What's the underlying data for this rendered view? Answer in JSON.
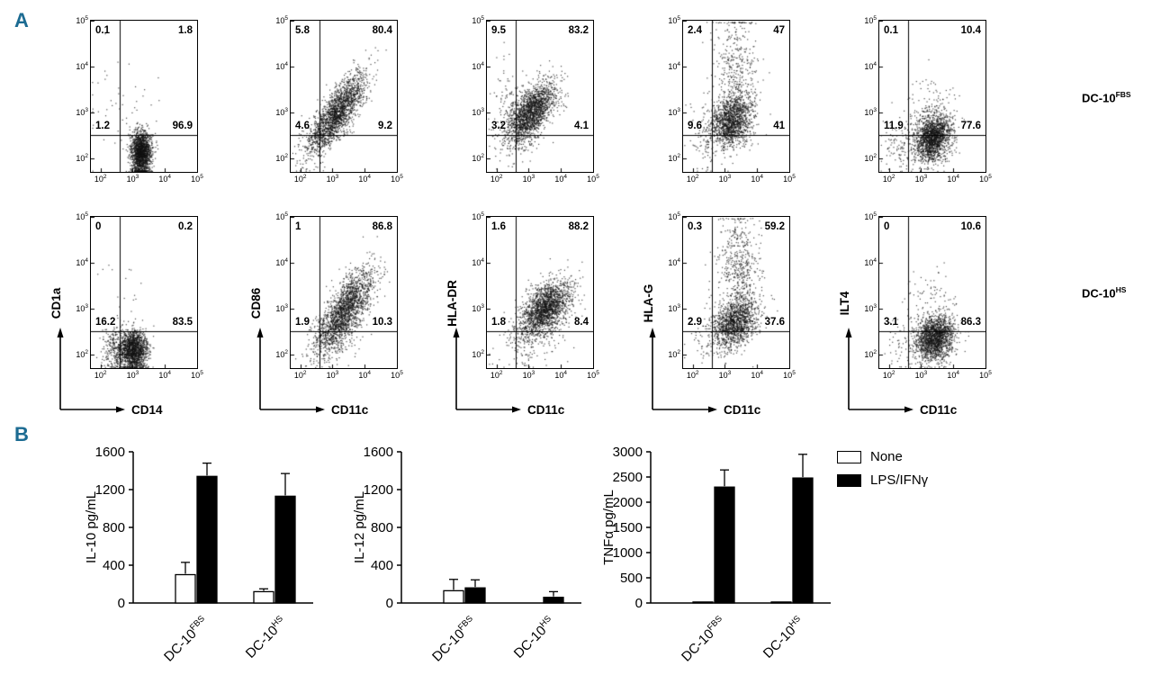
{
  "colors": {
    "panel_label": "#1c6b92",
    "dot": "#111111",
    "axis": "#000000"
  },
  "panel_a": {
    "label": "A",
    "tick_exponents": [
      2,
      3,
      4,
      5
    ],
    "row_labels": [
      {
        "text": "DC-10",
        "sup": "FBS"
      },
      {
        "text": "DC-10",
        "sup": "HS"
      }
    ],
    "columns": [
      {
        "y_label": "CD1a",
        "x_label": "CD14"
      },
      {
        "y_label": "CD86",
        "x_label": "CD11c"
      },
      {
        "y_label": "HLA-DR",
        "x_label": "CD11c"
      },
      {
        "y_label": "HLA-G",
        "x_label": "CD11c"
      },
      {
        "y_label": "ILT4",
        "x_label": "CD11c"
      }
    ]
  },
  "panel_b": {
    "label": "B",
    "legend": [
      {
        "label": "None",
        "fill": "#ffffff"
      },
      {
        "label": "LPS/IFNγ",
        "fill": "#000000"
      }
    ]
  },
  "chart_data": [
    {
      "type": "scatter",
      "row": 0,
      "col": 0,
      "row_label": "DC-10 FBS",
      "x_label": "CD14",
      "y_label": "CD1a",
      "x_range_exp": [
        1.7,
        5
      ],
      "y_range_exp": [
        1.7,
        5
      ],
      "quad_x": 2.6,
      "quad_y": 2.5,
      "quadrants": {
        "tl": "0.1",
        "tr": "1.8",
        "bl": "1.2",
        "br": "96.9"
      },
      "seed": 11,
      "clusters": [
        {
          "cx": 3.25,
          "cy": 2.12,
          "sx": 0.15,
          "sy": 0.24,
          "corr": 0,
          "n": 1700
        },
        {
          "cx": 2.35,
          "cy": 3.3,
          "sx": 0.45,
          "sy": 0.8,
          "corr": 0,
          "n": 30
        },
        {
          "cx": 3.2,
          "cy": 2.7,
          "sx": 0.4,
          "sy": 0.5,
          "corr": 0,
          "n": 40
        }
      ]
    },
    {
      "type": "scatter",
      "row": 0,
      "col": 1,
      "row_label": "DC-10 FBS",
      "x_label": "CD11c",
      "y_label": "CD86",
      "x_range_exp": [
        1.7,
        5
      ],
      "y_range_exp": [
        1.7,
        5
      ],
      "quad_x": 2.6,
      "quad_y": 2.5,
      "quadrants": {
        "tl": "5.8",
        "tr": "80.4",
        "bl": "4.6",
        "br": "9.2"
      },
      "seed": 12,
      "clusters": [
        {
          "cx": 3.15,
          "cy": 3.0,
          "sx": 0.42,
          "sy": 0.42,
          "corr": 0.78,
          "n": 1900
        },
        {
          "cx": 2.45,
          "cy": 2.35,
          "sx": 0.3,
          "sy": 0.3,
          "corr": 0.3,
          "n": 110
        }
      ]
    },
    {
      "type": "scatter",
      "row": 0,
      "col": 2,
      "row_label": "DC-10 FBS",
      "x_label": "CD11c",
      "y_label": "HLA-DR",
      "x_range_exp": [
        1.7,
        5
      ],
      "y_range_exp": [
        1.7,
        5
      ],
      "quad_x": 2.6,
      "quad_y": 2.5,
      "quadrants": {
        "tl": "9.5",
        "tr": "83.2",
        "bl": "3.2",
        "br": "4.1"
      },
      "seed": 13,
      "clusters": [
        {
          "cx": 3.05,
          "cy": 3.0,
          "sx": 0.4,
          "sy": 0.33,
          "corr": 0.6,
          "n": 1900
        },
        {
          "cx": 2.35,
          "cy": 3.2,
          "sx": 0.3,
          "sy": 0.45,
          "corr": 0,
          "n": 70
        },
        {
          "cx": 2.6,
          "cy": 2.3,
          "sx": 0.3,
          "sy": 0.25,
          "corr": 0,
          "n": 50
        }
      ]
    },
    {
      "type": "scatter",
      "row": 0,
      "col": 3,
      "row_label": "DC-10 FBS",
      "x_label": "CD11c",
      "y_label": "HLA-G",
      "x_range_exp": [
        1.7,
        5
      ],
      "y_range_exp": [
        1.7,
        5
      ],
      "quad_x": 2.6,
      "quad_y": 2.5,
      "quadrants": {
        "tl": "2.4",
        "tr": "47",
        "bl": "9.6",
        "br": "41"
      },
      "seed": 14,
      "clusters": [
        {
          "cx": 3.2,
          "cy": 2.8,
          "sx": 0.33,
          "sy": 0.28,
          "corr": 0.25,
          "n": 1400
        },
        {
          "cx": 3.35,
          "cy": 3.9,
          "sx": 0.33,
          "sy": 0.65,
          "corr": 0,
          "n": 420
        },
        {
          "cx": 2.4,
          "cy": 2.5,
          "sx": 0.3,
          "sy": 0.45,
          "corr": 0,
          "n": 90
        }
      ]
    },
    {
      "type": "scatter",
      "row": 0,
      "col": 4,
      "row_label": "DC-10 FBS",
      "x_label": "CD11c",
      "y_label": "ILT4",
      "x_range_exp": [
        1.7,
        5
      ],
      "y_range_exp": [
        1.7,
        5
      ],
      "quad_x": 2.6,
      "quad_y": 2.5,
      "quadrants": {
        "tl": "0.1",
        "tr": "10.4",
        "bl": "11.9",
        "br": "77.6"
      },
      "seed": 15,
      "clusters": [
        {
          "cx": 3.35,
          "cy": 2.45,
          "sx": 0.28,
          "sy": 0.26,
          "corr": 0.2,
          "n": 1700
        },
        {
          "cx": 3.3,
          "cy": 3.05,
          "sx": 0.4,
          "sy": 0.35,
          "corr": 0.2,
          "n": 130
        },
        {
          "cx": 2.35,
          "cy": 2.25,
          "sx": 0.3,
          "sy": 0.3,
          "corr": 0,
          "n": 110
        }
      ]
    },
    {
      "type": "scatter",
      "row": 1,
      "col": 0,
      "row_label": "DC-10 HS",
      "x_label": "CD14",
      "y_label": "CD1a",
      "x_range_exp": [
        1.7,
        5
      ],
      "y_range_exp": [
        1.7,
        5
      ],
      "quad_x": 2.6,
      "quad_y": 2.5,
      "quadrants": {
        "tl": "0",
        "tr": "0.2",
        "bl": "16.2",
        "br": "83.5"
      },
      "seed": 16,
      "clusters": [
        {
          "cx": 3.0,
          "cy": 2.1,
          "sx": 0.22,
          "sy": 0.22,
          "corr": 0,
          "n": 1500
        },
        {
          "cx": 2.45,
          "cy": 2.1,
          "sx": 0.2,
          "sy": 0.22,
          "corr": 0,
          "n": 260
        },
        {
          "cx": 2.7,
          "cy": 3.1,
          "sx": 0.5,
          "sy": 0.7,
          "corr": 0,
          "n": 25
        }
      ]
    },
    {
      "type": "scatter",
      "row": 1,
      "col": 1,
      "row_label": "DC-10 HS",
      "x_label": "CD11c",
      "y_label": "CD86",
      "x_range_exp": [
        1.7,
        5
      ],
      "y_range_exp": [
        1.7,
        5
      ],
      "quad_x": 2.6,
      "quad_y": 2.5,
      "quadrants": {
        "tl": "1",
        "tr": "86.8",
        "bl": "1.9",
        "br": "10.3"
      },
      "seed": 17,
      "clusters": [
        {
          "cx": 3.35,
          "cy": 2.95,
          "sx": 0.45,
          "sy": 0.45,
          "corr": 0.72,
          "n": 1900
        },
        {
          "cx": 2.9,
          "cy": 2.3,
          "sx": 0.4,
          "sy": 0.25,
          "corr": 0.2,
          "n": 140
        }
      ]
    },
    {
      "type": "scatter",
      "row": 1,
      "col": 2,
      "row_label": "DC-10 HS",
      "x_label": "CD11c",
      "y_label": "HLA-DR",
      "x_range_exp": [
        1.7,
        5
      ],
      "y_range_exp": [
        1.7,
        5
      ],
      "quad_x": 2.6,
      "quad_y": 2.5,
      "quadrants": {
        "tl": "1.6",
        "tr": "88.2",
        "bl": "1.8",
        "br": "8.4"
      },
      "seed": 18,
      "clusters": [
        {
          "cx": 3.5,
          "cy": 3.0,
          "sx": 0.4,
          "sy": 0.3,
          "corr": 0.5,
          "n": 1900
        },
        {
          "cx": 3.0,
          "cy": 2.25,
          "sx": 0.5,
          "sy": 0.25,
          "corr": 0.2,
          "n": 130
        }
      ]
    },
    {
      "type": "scatter",
      "row": 1,
      "col": 3,
      "row_label": "DC-10 HS",
      "x_label": "CD11c",
      "y_label": "HLA-G",
      "x_range_exp": [
        1.7,
        5
      ],
      "y_range_exp": [
        1.7,
        5
      ],
      "quad_x": 2.6,
      "quad_y": 2.5,
      "quadrants": {
        "tl": "0.3",
        "tr": "59.2",
        "bl": "2.9",
        "br": "37.6"
      },
      "seed": 19,
      "clusters": [
        {
          "cx": 3.3,
          "cy": 2.7,
          "sx": 0.35,
          "sy": 0.28,
          "corr": 0.3,
          "n": 1300
        },
        {
          "cx": 3.45,
          "cy": 3.9,
          "sx": 0.33,
          "sy": 0.6,
          "corr": 0,
          "n": 520
        },
        {
          "cx": 2.5,
          "cy": 2.35,
          "sx": 0.3,
          "sy": 0.3,
          "corr": 0,
          "n": 70
        }
      ]
    },
    {
      "type": "scatter",
      "row": 1,
      "col": 4,
      "row_label": "DC-10 HS",
      "x_label": "CD11c",
      "y_label": "ILT4",
      "x_range_exp": [
        1.7,
        5
      ],
      "y_range_exp": [
        1.7,
        5
      ],
      "quad_x": 2.6,
      "quad_y": 2.5,
      "quadrants": {
        "tl": "0",
        "tr": "10.6",
        "bl": "3.1",
        "br": "86.3"
      },
      "seed": 20,
      "clusters": [
        {
          "cx": 3.4,
          "cy": 2.35,
          "sx": 0.3,
          "sy": 0.24,
          "corr": 0.15,
          "n": 1700
        },
        {
          "cx": 3.4,
          "cy": 3.1,
          "sx": 0.4,
          "sy": 0.45,
          "corr": 0,
          "n": 110
        },
        {
          "cx": 2.4,
          "cy": 2.2,
          "sx": 0.3,
          "sy": 0.28,
          "corr": 0,
          "n": 60
        }
      ]
    },
    {
      "type": "bar",
      "ylabel": "IL-10 pg/mL",
      "ylim": [
        0,
        1600
      ],
      "yticks": [
        0,
        400,
        800,
        1200,
        1600
      ],
      "legend_position": "outside-right",
      "grid": false,
      "categories": [
        {
          "text": "DC-10",
          "sup": "FBS"
        },
        {
          "text": "DC-10",
          "sup": "HS"
        }
      ],
      "series": [
        {
          "name": "None",
          "fill": "#ffffff",
          "values": [
            300,
            120
          ],
          "errors": [
            130,
            30
          ]
        },
        {
          "name": "LPS/IFNγ",
          "fill": "#000000",
          "values": [
            1340,
            1130
          ],
          "errors": [
            140,
            240
          ]
        }
      ]
    },
    {
      "type": "bar",
      "ylabel": "IL-12 pg/mL",
      "ylim": [
        0,
        1600
      ],
      "yticks": [
        0,
        400,
        800,
        1200,
        1600
      ],
      "grid": false,
      "categories": [
        {
          "text": "DC-10",
          "sup": "FBS"
        },
        {
          "text": "DC-10",
          "sup": "HS"
        }
      ],
      "series": [
        {
          "name": "None",
          "fill": "#ffffff",
          "values": [
            130,
            0
          ],
          "errors": [
            120,
            0
          ]
        },
        {
          "name": "LPS/IFNγ",
          "fill": "#000000",
          "values": [
            160,
            60
          ],
          "errors": [
            85,
            60
          ]
        }
      ]
    },
    {
      "type": "bar",
      "ylabel": "TNFα pg/mL",
      "ylim": [
        0,
        3000
      ],
      "yticks": [
        0,
        500,
        1000,
        1500,
        2000,
        2500,
        3000
      ],
      "grid": false,
      "categories": [
        {
          "text": "DC-10",
          "sup": "FBS"
        },
        {
          "text": "DC-10",
          "sup": "HS"
        }
      ],
      "series": [
        {
          "name": "None",
          "fill": "#ffffff",
          "values": [
            20,
            20
          ],
          "errors": [
            0,
            0
          ]
        },
        {
          "name": "LPS/IFNγ",
          "fill": "#000000",
          "values": [
            2300,
            2480
          ],
          "errors": [
            340,
            470
          ]
        }
      ]
    }
  ]
}
